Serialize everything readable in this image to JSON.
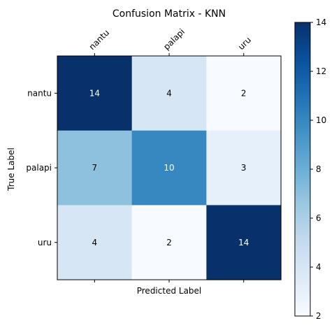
{
  "chart_data": {
    "type": "heatmap",
    "title": "Confusion Matrix - KNN",
    "xlabel": "Predicted Label",
    "ylabel": "True Label",
    "x_categories": [
      "nantu",
      "palapi",
      "uru"
    ],
    "y_categories": [
      "nantu",
      "palapi",
      "uru"
    ],
    "values": [
      [
        14,
        4,
        2
      ],
      [
        7,
        10,
        3
      ],
      [
        4,
        2,
        14
      ]
    ],
    "colormap": "Blues",
    "x_ticks_position": "top",
    "colorbar": {
      "range": [
        2,
        14
      ],
      "ticks": [
        2,
        4,
        6,
        8,
        10,
        12,
        14
      ],
      "position": "right"
    }
  }
}
